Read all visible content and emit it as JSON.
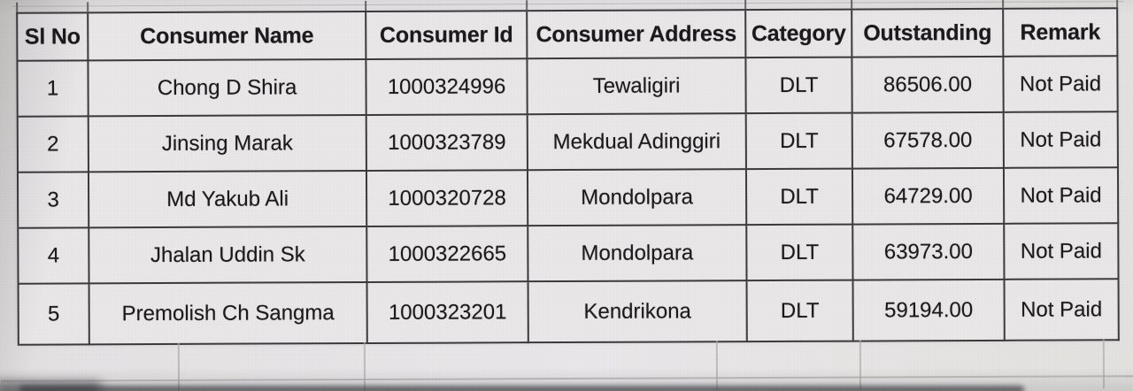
{
  "table": {
    "headers": [
      "Sl No",
      "Consumer Name",
      "Consumer Id",
      "Consumer Address",
      "Category",
      "Outstanding",
      "Remark"
    ],
    "rows": [
      [
        "1",
        "Chong D Shira",
        "1000324996",
        "Tewaligiri",
        "DLT",
        "86506.00",
        "Not Paid"
      ],
      [
        "2",
        "Jinsing Marak",
        "1000323789",
        "Mekdual Adinggiri",
        "DLT",
        "67578.00",
        "Not Paid"
      ],
      [
        "3",
        "Md Yakub Ali",
        "1000320728",
        "Mondolpara",
        "DLT",
        "64729.00",
        "Not Paid"
      ],
      [
        "4",
        "Jhalan Uddin Sk",
        "1000322665",
        "Mondolpara",
        "DLT",
        "63973.00",
        "Not Paid"
      ],
      [
        "5",
        "Premolish Ch Sangma",
        "1000323201",
        "Kendrikona",
        "DLT",
        "59194.00",
        "Not Paid"
      ]
    ]
  }
}
